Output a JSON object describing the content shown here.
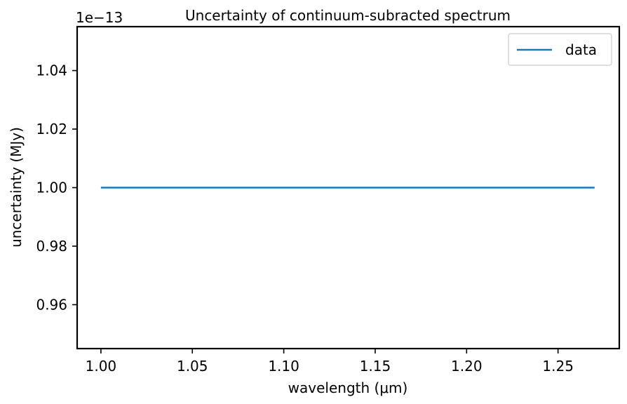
{
  "chart_data": {
    "type": "line",
    "title": "Uncertainty of continuum-subracted spectrum",
    "xlabel": "wavelength (μm)",
    "ylabel": "uncertainty (MJy)",
    "y_offset_label": "1e−13",
    "xlim": [
      0.987,
      1.2835
    ],
    "ylim": [
      0.945,
      1.055
    ],
    "x_ticks": [
      1.0,
      1.05,
      1.1,
      1.15,
      1.2,
      1.25
    ],
    "x_tick_labels": [
      "1.00",
      "1.05",
      "1.10",
      "1.15",
      "1.20",
      "1.25"
    ],
    "y_ticks": [
      0.96,
      0.98,
      1.0,
      1.02,
      1.04
    ],
    "y_tick_labels": [
      "0.96",
      "0.98",
      "1.00",
      "1.02",
      "1.04"
    ],
    "grid": false,
    "legend_position": "top-right",
    "series": [
      {
        "name": "data",
        "color": "#1f77b4",
        "x": [
          1.0,
          1.27
        ],
        "y": [
          1.0,
          1.0
        ]
      }
    ]
  }
}
